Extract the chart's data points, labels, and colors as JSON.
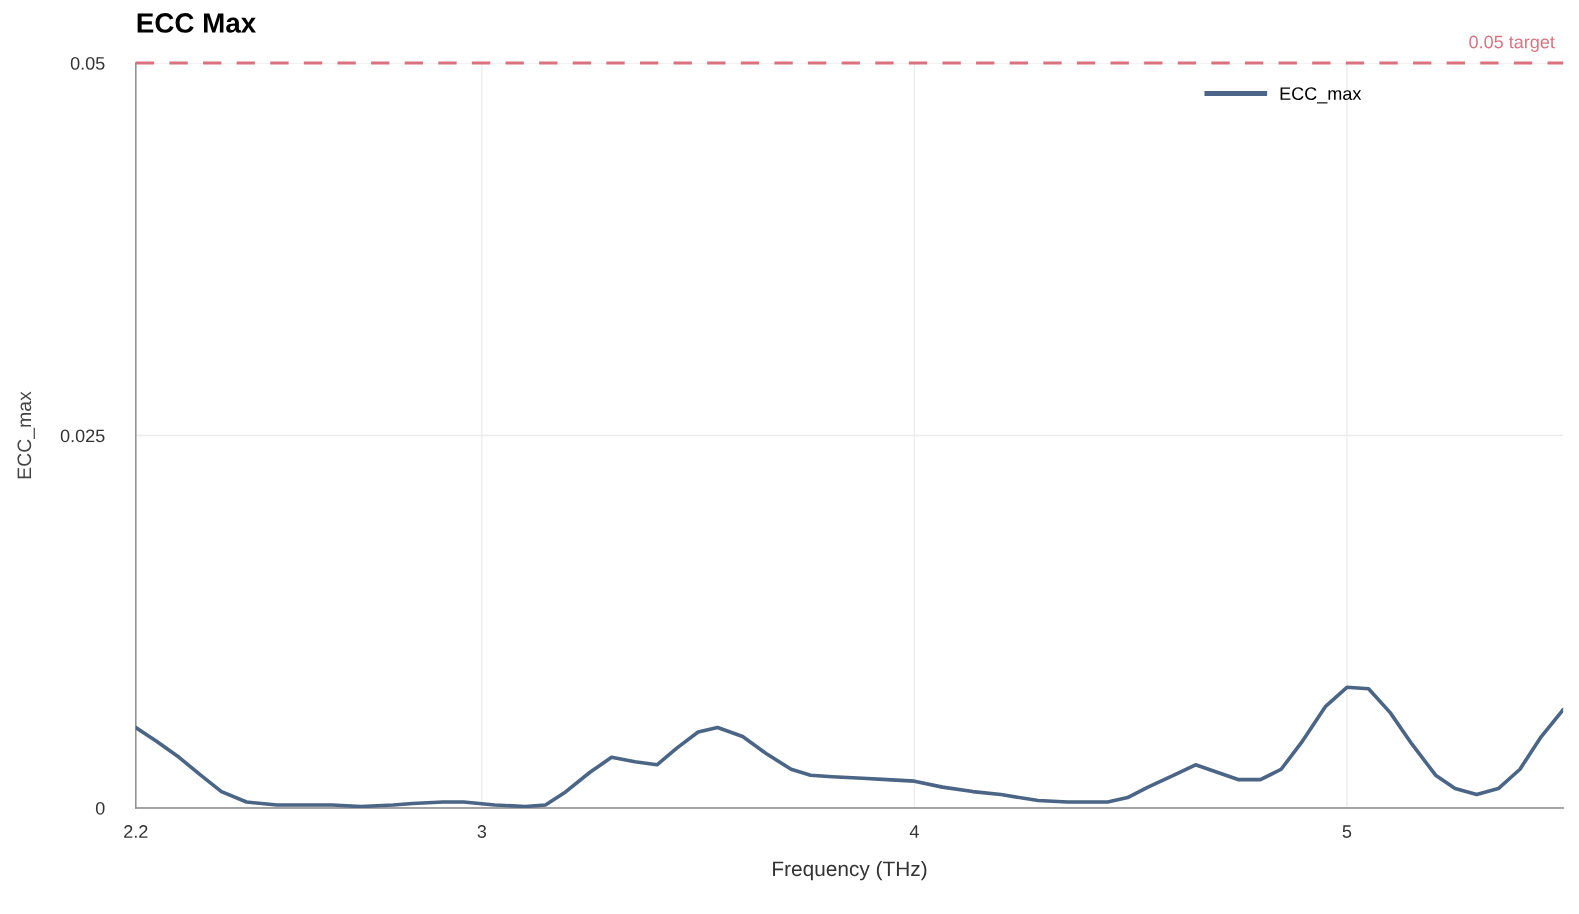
{
  "chart_data": {
    "type": "line",
    "title": "ECC Max",
    "xlabel": "Frequency (THz)",
    "ylabel": "ECC_max",
    "xlim": [
      2.2,
      5.5
    ],
    "xticks": [
      2.2,
      3,
      4,
      5
    ],
    "ylim": [
      0,
      0.05
    ],
    "yticks": [
      0,
      0.025,
      0.05
    ],
    "grid": true,
    "legend": "top right",
    "marker": "none",
    "line_style": "solid",
    "ref_lines": [
      {
        "axis": "y",
        "value": 0.05,
        "label": "0.05 target",
        "color": "#d9727f",
        "line_style": "dashed"
      }
    ],
    "series": [
      {
        "name": "ECC_max",
        "color": "#4a6585",
        "x": [
          2.2,
          2.247,
          2.3,
          2.35,
          2.398,
          2.456,
          2.526,
          2.607,
          2.654,
          2.72,
          2.795,
          2.84,
          2.91,
          2.958,
          3.03,
          3.1,
          3.147,
          3.19,
          3.25,
          3.3,
          3.354,
          3.405,
          3.45,
          3.5,
          3.545,
          3.603,
          3.66,
          3.715,
          3.76,
          3.81,
          3.88,
          3.937,
          4.0,
          4.065,
          4.135,
          4.2,
          4.286,
          4.355,
          4.41,
          4.447,
          4.493,
          4.54,
          4.6,
          4.65,
          4.7,
          4.75,
          4.8,
          4.848,
          4.895,
          4.95,
          5.0,
          5.05,
          5.1,
          5.15,
          5.205,
          5.25,
          5.3,
          5.35,
          5.4,
          5.447,
          5.5
        ],
        "values": [
          0.0054,
          0.0045,
          0.0034,
          0.0022,
          0.0011,
          0.0004,
          0.0002,
          0.0002,
          0.0002,
          0.0001,
          0.0002,
          0.0003,
          0.0004,
          0.0004,
          0.0002,
          0.0001,
          0.0002,
          0.001,
          0.0024,
          0.0034,
          0.0031,
          0.0029,
          0.004,
          0.0051,
          0.0054,
          0.0048,
          0.0036,
          0.0026,
          0.0022,
          0.0021,
          0.002,
          0.0019,
          0.0018,
          0.0014,
          0.0011,
          0.0009,
          0.0005,
          0.0004,
          0.0004,
          0.0004,
          0.0007,
          0.0014,
          0.0022,
          0.0029,
          0.0024,
          0.0019,
          0.0019,
          0.0026,
          0.0044,
          0.0068,
          0.0081,
          0.008,
          0.0064,
          0.0043,
          0.0022,
          0.0013,
          0.0009,
          0.0013,
          0.0026,
          0.0047,
          0.0066
        ]
      }
    ]
  }
}
